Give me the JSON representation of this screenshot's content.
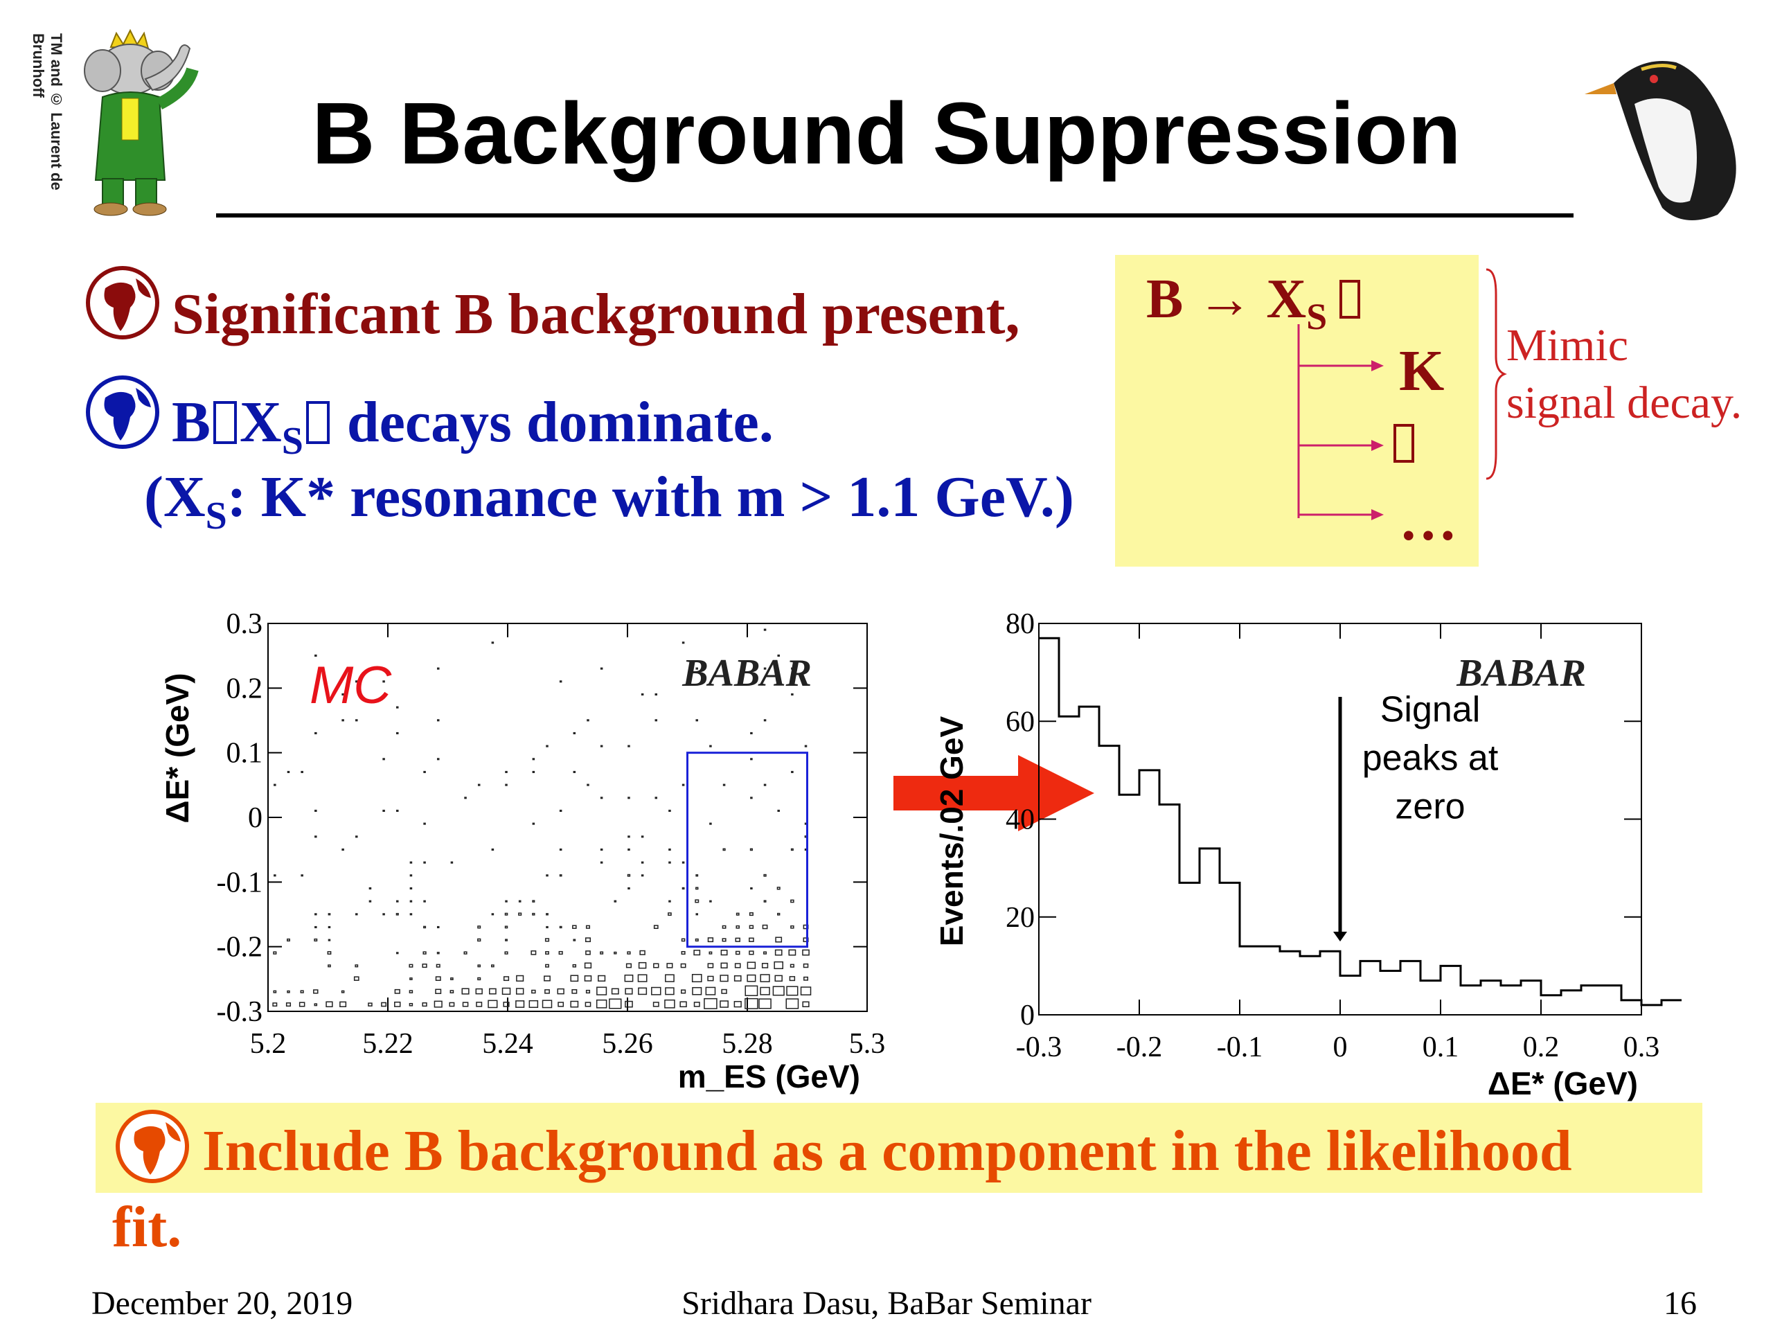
{
  "slide": {
    "title": "B Background Suppression",
    "logo_credit": "TM and © Laurent de Brunhoff",
    "bullet1": "Significant B background present,",
    "bullet2_pre": "B",
    "bullet2_x": "X",
    "bullet2_sub": "S",
    "bullet2_post": " decays dominate.",
    "bullet2_line2_pre": "(X",
    "bullet2_line2_sub": "S",
    "bullet2_line2_post": ": K* resonance with m > 1.1 GeV.)",
    "decay_box": {
      "parent": "B → X",
      "parent_sub": "S",
      "products": [
        "K",
        "…"
      ],
      "note_line1": "Mimic",
      "note_line2": "signal decay."
    },
    "conclusion_line1": "Include B background as a component in the likelihood",
    "conclusion_line2": "fit.",
    "footer_date": "December 20, 2019",
    "footer_author": "Sridhara Dasu, BaBar Seminar",
    "footer_page": "16",
    "colors": {
      "red": "#8b0c0c",
      "blue": "#0a16a8",
      "orange": "#e64a00",
      "yellow": "#fcf8a2",
      "arrow": "#ee2a10"
    }
  },
  "chart_data": [
    {
      "type": "scatter",
      "title": "",
      "mc_label": "MC",
      "experiment_label": "BABAR",
      "xlabel": "m_ES (GeV)",
      "ylabel": "ΔE* (GeV)",
      "xlim": [
        5.2,
        5.3
      ],
      "ylim": [
        -0.3,
        0.3
      ],
      "x_ticks": [
        "5.2",
        "5.22",
        "5.24",
        "5.26",
        "5.28",
        "5.3"
      ],
      "y_ticks": [
        "0.3",
        "0.2",
        "0.1",
        "0",
        "-0.1",
        "-0.2",
        "-0.3"
      ],
      "signal_box": {
        "x": [
          5.27,
          5.29
        ],
        "y": [
          -0.2,
          0.1
        ]
      },
      "note": "box-style density plot: events concentrate at low ΔE* and high m_ES"
    },
    {
      "type": "bar",
      "title": "",
      "experiment_label": "BABAR",
      "xlabel": "ΔE* (GeV)",
      "ylabel": "Events/.02 GeV",
      "xlim": [
        -0.3,
        0.3
      ],
      "ylim": [
        0,
        80
      ],
      "x_ticks": [
        "-0.3",
        "-0.2",
        "-0.1",
        "0",
        "0.1",
        "0.2",
        "0.3"
      ],
      "y_ticks": [
        "80",
        "60",
        "40",
        "20",
        "0"
      ],
      "bin_width": 0.02,
      "values": [
        77,
        61,
        63,
        55,
        45,
        50,
        43,
        27,
        34,
        27,
        14,
        14,
        13,
        12,
        13,
        8,
        11,
        9,
        11,
        7,
        10,
        6,
        7,
        6,
        7,
        4,
        5,
        6,
        6,
        3,
        2,
        3
      ],
      "annotation": [
        "Signal",
        "peaks at",
        "zero"
      ]
    }
  ]
}
